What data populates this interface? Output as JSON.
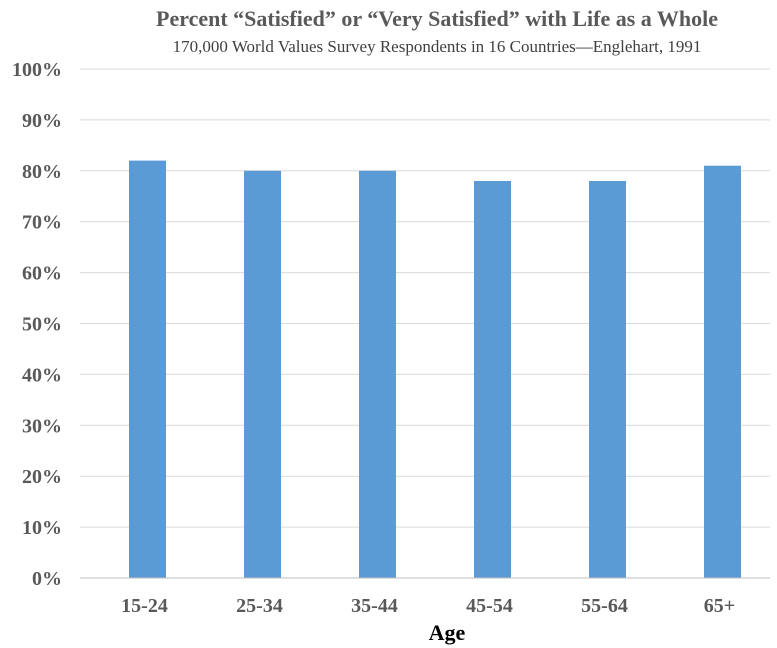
{
  "chart_data": {
    "type": "bar",
    "title": "Percent “Satisfied” or “Very Satisfied” with Life as a Whole",
    "subtitle": "170,000 World Values Survey Respondents in 16 Countries—Englehart, 1991",
    "xlabel": "Age",
    "ylabel": "",
    "categories": [
      "15-24",
      "25-34",
      "35-44",
      "45-54",
      "55-64",
      "65+"
    ],
    "values": [
      82,
      80,
      80,
      78,
      78,
      81
    ],
    "ylim": [
      0,
      100
    ],
    "yticks": [
      "0%",
      "10%",
      "20%",
      "30%",
      "40%",
      "50%",
      "60%",
      "70%",
      "80%",
      "90%",
      "100%"
    ],
    "grid": true,
    "legend": "none",
    "bar_color": "#5b9bd5"
  }
}
